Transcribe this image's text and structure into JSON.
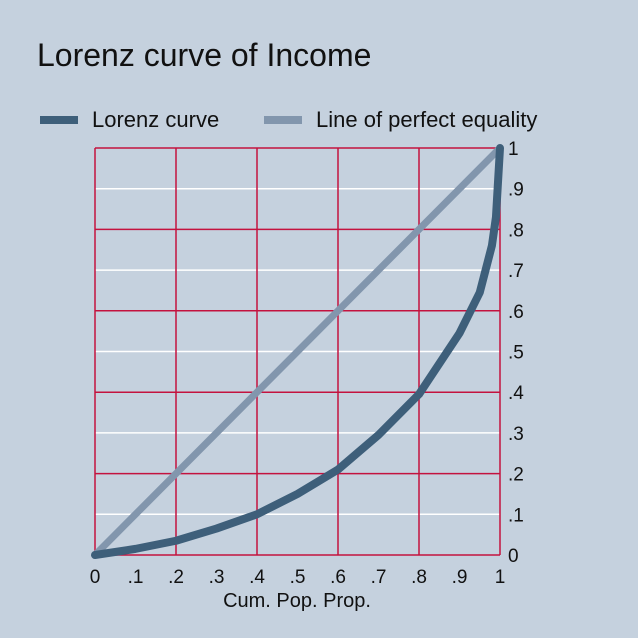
{
  "chart_data": {
    "type": "line",
    "title": "Lorenz curve of Income",
    "xlabel": "Cum. Pop. Prop.",
    "ylabel": "",
    "xlim": [
      0,
      1
    ],
    "ylim": [
      0,
      1
    ],
    "x_ticks": [
      "0",
      ".1",
      ".2",
      ".3",
      ".4",
      ".5",
      ".6",
      ".7",
      ".8",
      ".9",
      "1"
    ],
    "y_ticks": [
      "0",
      ".1",
      ".2",
      ".3",
      ".4",
      ".5",
      ".6",
      ".7",
      ".8",
      ".9",
      "1"
    ],
    "y_axis_position": "right",
    "legend_position": "top",
    "grid": true,
    "series": [
      {
        "name": "Lorenz curve",
        "color": "#3e5f7a",
        "x": [
          0,
          0.1,
          0.2,
          0.3,
          0.4,
          0.5,
          0.6,
          0.7,
          0.8,
          0.9,
          0.95,
          0.98,
          0.99,
          1.0
        ],
        "y": [
          0,
          0.015,
          0.035,
          0.065,
          0.1,
          0.15,
          0.21,
          0.295,
          0.395,
          0.545,
          0.645,
          0.76,
          0.83,
          1.0
        ]
      },
      {
        "name": "Line of perfect equality",
        "color": "#8296ad",
        "x": [
          0,
          1
        ],
        "y": [
          0,
          1
        ]
      }
    ]
  },
  "colors": {
    "background": "#c5d1de",
    "major_grid": "#c4123f",
    "minor_grid": "#ffffff"
  }
}
